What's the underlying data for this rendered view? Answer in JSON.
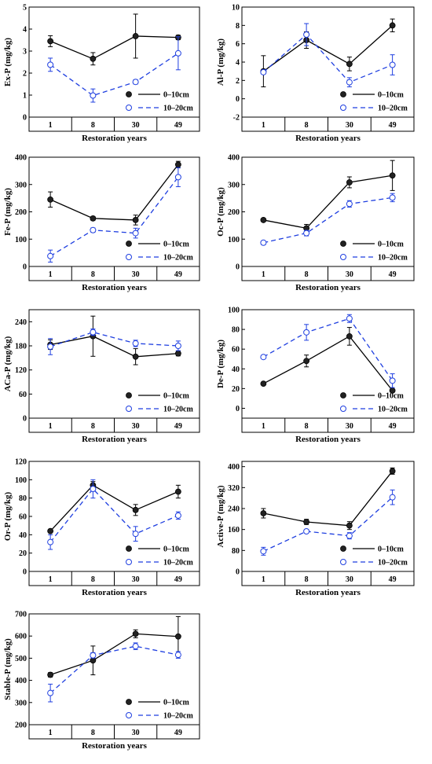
{
  "legend_labels": [
    "0–10cm",
    "10–20cm"
  ],
  "series_colors": {
    "s1": "#000000",
    "s2": "#1f3fe0"
  },
  "chart_data": [
    {
      "type": "line",
      "ylabel": "Ex-P (mg/kg)",
      "xlabel": "Restoration years",
      "categories": [
        "1",
        "8",
        "30",
        "49"
      ],
      "ylim": [
        0,
        5
      ],
      "yticks": [
        0,
        1,
        2,
        3,
        4,
        5
      ],
      "series": [
        {
          "name": "0–10cm",
          "values": [
            3.45,
            2.65,
            3.68,
            3.62
          ],
          "errors": [
            0.25,
            0.28,
            1.0,
            0.1
          ]
        },
        {
          "name": "10–20cm",
          "values": [
            2.38,
            0.98,
            1.6,
            2.9
          ],
          "errors": [
            0.3,
            0.3,
            0.1,
            0.75
          ]
        }
      ],
      "legend": "bottom-right"
    },
    {
      "type": "line",
      "ylabel": "Al-P (mg/kg)",
      "xlabel": "Restoration years",
      "categories": [
        "1",
        "8",
        "30",
        "49"
      ],
      "ylim": [
        -2,
        10
      ],
      "yticks": [
        -2,
        0,
        2,
        4,
        6,
        8,
        10
      ],
      "series": [
        {
          "name": "0–10cm",
          "values": [
            3.0,
            6.4,
            3.8,
            8.0
          ],
          "errors": [
            1.7,
            0.9,
            0.75,
            0.7
          ]
        },
        {
          "name": "10–20cm",
          "values": [
            2.9,
            7.0,
            1.8,
            3.7
          ],
          "errors": [
            0.2,
            1.2,
            0.5,
            1.1
          ]
        }
      ],
      "legend": "bottom-right"
    },
    {
      "type": "line",
      "ylabel": "Fe-P (mg/kg)",
      "xlabel": "Restoration years",
      "categories": [
        "1",
        "8",
        "30",
        "49"
      ],
      "ylim": [
        0,
        400
      ],
      "yticks": [
        0,
        100,
        200,
        300,
        400
      ],
      "series": [
        {
          "name": "0–10cm",
          "values": [
            245,
            176,
            170,
            373
          ],
          "errors": [
            28,
            7,
            18,
            12
          ]
        },
        {
          "name": "10–20cm",
          "values": [
            38,
            133,
            122,
            327
          ],
          "errors": [
            22,
            8,
            18,
            35
          ]
        }
      ],
      "legend": "bottom-right"
    },
    {
      "type": "line",
      "ylabel": "Oc-P (mg/kg)",
      "xlabel": "Restoration years",
      "categories": [
        "1",
        "8",
        "30",
        "49"
      ],
      "ylim": [
        0,
        400
      ],
      "yticks": [
        0,
        100,
        200,
        300,
        400
      ],
      "series": [
        {
          "name": "0–10cm",
          "values": [
            170,
            140,
            308,
            333
          ],
          "errors": [
            4,
            14,
            20,
            55
          ]
        },
        {
          "name": "10–20cm",
          "values": [
            87,
            122,
            229,
            252
          ],
          "errors": [
            7,
            10,
            12,
            15
          ]
        }
      ],
      "legend": "bottom-right"
    },
    {
      "type": "line",
      "ylabel": "ACa-P (mg/kg)",
      "xlabel": "Restoration years",
      "categories": [
        "1",
        "8",
        "30",
        "49"
      ],
      "ylim": [
        0,
        270
      ],
      "yticks": [
        0,
        60,
        120,
        180,
        240
      ],
      "series": [
        {
          "name": "0–10cm",
          "values": [
            183,
            204,
            153,
            161
          ],
          "errors": [
            12,
            50,
            20,
            6
          ]
        },
        {
          "name": "10–20cm",
          "values": [
            178,
            214,
            186,
            180
          ],
          "errors": [
            20,
            8,
            8,
            12
          ]
        }
      ],
      "legend": "bottom-right"
    },
    {
      "type": "line",
      "ylabel": "De-P (mg/kg)",
      "xlabel": "Restoration years",
      "categories": [
        "1",
        "8",
        "30",
        "49"
      ],
      "ylim": [
        -10,
        100
      ],
      "yticks": [
        0,
        20,
        40,
        60,
        80,
        100
      ],
      "series": [
        {
          "name": "0–10cm",
          "values": [
            25,
            48,
            73,
            18
          ],
          "errors": [
            1,
            6,
            9,
            1
          ]
        },
        {
          "name": "10–20cm",
          "values": [
            52,
            77,
            91,
            28
          ],
          "errors": [
            1,
            8,
            4,
            7
          ]
        }
      ],
      "legend": "bottom-right"
    },
    {
      "type": "line",
      "ylabel": "Or-P (mg/kg)",
      "xlabel": "Restoration years",
      "categories": [
        "1",
        "8",
        "30",
        "49"
      ],
      "ylim": [
        0,
        120
      ],
      "yticks": [
        0,
        20,
        40,
        60,
        80,
        100,
        120
      ],
      "series": [
        {
          "name": "0–10cm",
          "values": [
            44,
            94,
            67,
            87
          ],
          "errors": [
            1,
            4,
            6,
            7
          ]
        },
        {
          "name": "10–20cm",
          "values": [
            32,
            90,
            41,
            61
          ],
          "errors": [
            8,
            10,
            8,
            4
          ]
        }
      ],
      "legend": "bottom-right"
    },
    {
      "type": "line",
      "ylabel": "Active-P (mg/kg)",
      "xlabel": "Restoration years",
      "categories": [
        "1",
        "8",
        "30",
        "49"
      ],
      "ylim": [
        0,
        420
      ],
      "yticks": [
        0,
        80,
        160,
        240,
        320,
        400
      ],
      "series": [
        {
          "name": "0–10cm",
          "values": [
            222,
            189,
            175,
            383
          ],
          "errors": [
            18,
            10,
            15,
            12
          ]
        },
        {
          "name": "10–20cm",
          "values": [
            77,
            153,
            136,
            283
          ],
          "errors": [
            15,
            4,
            12,
            28
          ]
        }
      ],
      "legend": "bottom-right"
    },
    {
      "type": "line",
      "ylabel": "Stable-P (mg/kg)",
      "xlabel": "Restoration years",
      "categories": [
        "1",
        "8",
        "30",
        "49"
      ],
      "ylim": [
        200,
        700
      ],
      "yticks": [
        200,
        300,
        400,
        500,
        600,
        700
      ],
      "series": [
        {
          "name": "0–10cm",
          "values": [
            425,
            490,
            610,
            598
          ],
          "errors": [
            10,
            65,
            18,
            90
          ]
        },
        {
          "name": "10–20cm",
          "values": [
            343,
            513,
            554,
            515
          ],
          "errors": [
            40,
            12,
            15,
            15
          ]
        }
      ],
      "legend": "bottom-right"
    }
  ]
}
